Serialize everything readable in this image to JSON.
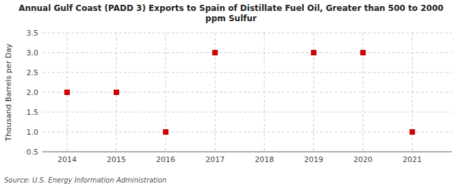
{
  "chart_data": {
    "type": "scatter",
    "title": "Annual Gulf Coast (PADD 3) Exports to Spain of Distillate Fuel Oil, Greater than 500 to 2000\nppm Sulfur",
    "y_label": "Thousand Barrels per Day",
    "source": "Source: U.S. Energy Information Administration",
    "x": [
      2014,
      2015,
      2015,
      2016,
      2017,
      2019,
      2020,
      2021
    ],
    "values": [
      2.0,
      2.0,
      2.0,
      1.0,
      3.0,
      3.0,
      3.0,
      1.0
    ],
    "xlim": [
      2013.5,
      2021.8
    ],
    "ylim": [
      0.5,
      3.5
    ],
    "xticks": [
      2014,
      2015,
      2016,
      2017,
      2018,
      2019,
      2020,
      2021
    ],
    "yticks": [
      0.5,
      {
        "value": 1.0,
        "label": "1.0"
      },
      1.5,
      {
        "value": 2.0,
        "label": "2.0"
      },
      2.5,
      {
        "value": 3.0,
        "label": "3.0"
      },
      3.5
    ],
    "color": "#cc0000",
    "marker": "square",
    "grid": true
  }
}
